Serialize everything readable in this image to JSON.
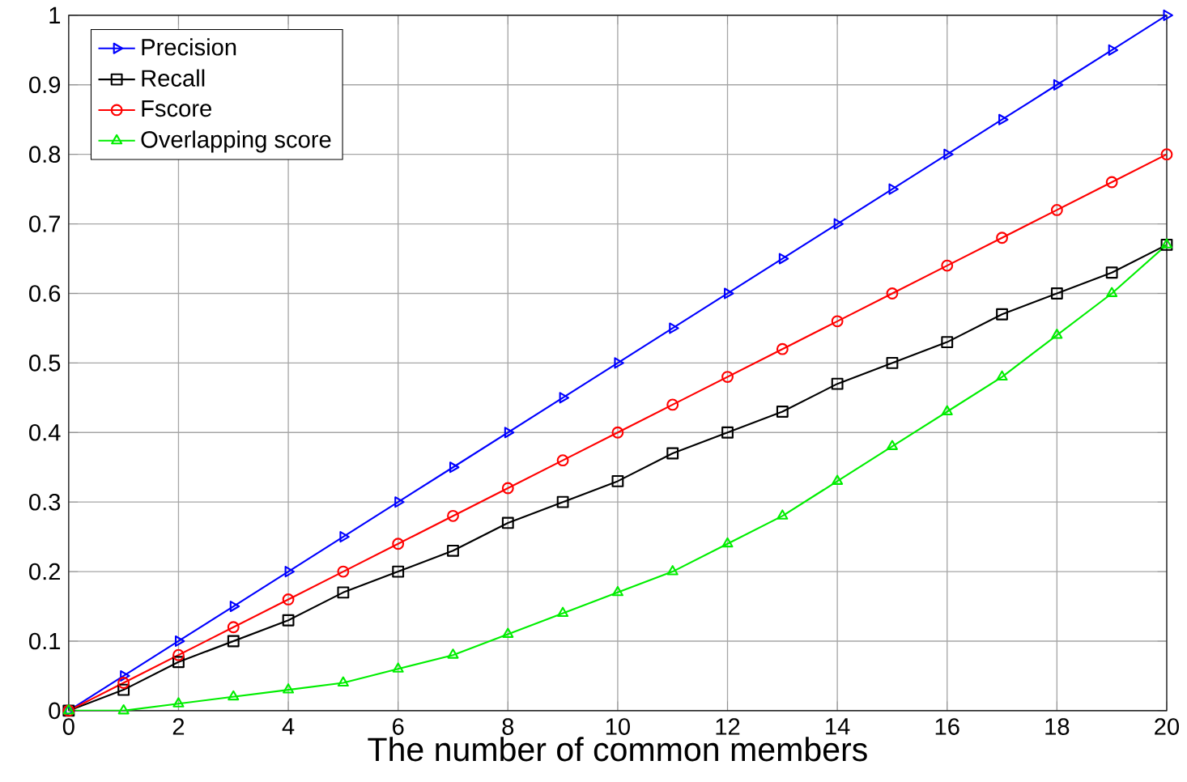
{
  "chart_data": {
    "type": "line",
    "xlabel": "The number of common members",
    "x": [
      0,
      1,
      2,
      3,
      4,
      5,
      6,
      7,
      8,
      9,
      10,
      11,
      12,
      13,
      14,
      15,
      16,
      17,
      18,
      19,
      20
    ],
    "series": [
      {
        "name": "Precision",
        "color": "#0000ff",
        "marker": "triangle-right",
        "values": [
          0,
          0.05,
          0.1,
          0.15,
          0.2,
          0.25,
          0.3,
          0.35,
          0.4,
          0.45,
          0.5,
          0.55,
          0.6,
          0.65,
          0.7,
          0.75,
          0.8,
          0.85,
          0.9,
          0.95,
          1
        ]
      },
      {
        "name": "Recall",
        "color": "#000000",
        "marker": "square",
        "values": [
          0,
          0.03,
          0.07,
          0.1,
          0.13,
          0.17,
          0.2,
          0.23,
          0.27,
          0.3,
          0.33,
          0.37,
          0.4,
          0.43,
          0.47,
          0.5,
          0.53,
          0.57,
          0.6,
          0.63,
          0.67
        ]
      },
      {
        "name": "Fscore",
        "color": "#ff0000",
        "marker": "circle",
        "values": [
          0,
          0.04,
          0.08,
          0.12,
          0.16,
          0.2,
          0.24,
          0.28,
          0.32,
          0.36,
          0.4,
          0.44,
          0.48,
          0.52,
          0.56,
          0.6,
          0.64,
          0.68,
          0.72,
          0.76,
          0.8
        ]
      },
      {
        "name": "Overlapping score",
        "color": "#00ee00",
        "marker": "triangle",
        "values": [
          0,
          0,
          0.01,
          0.02,
          0.03,
          0.04,
          0.06,
          0.08,
          0.11,
          0.14,
          0.17,
          0.2,
          0.24,
          0.28,
          0.33,
          0.38,
          0.43,
          0.48,
          0.54,
          0.6,
          0.67
        ]
      }
    ],
    "xlim": [
      0,
      20
    ],
    "xticks": [
      0,
      2,
      4,
      6,
      8,
      10,
      12,
      14,
      16,
      18,
      20
    ],
    "ylim": [
      0,
      1
    ],
    "yticks": [
      0,
      0.1,
      0.2,
      0.3,
      0.4,
      0.5,
      0.6,
      0.7,
      0.8,
      0.9,
      1
    ],
    "grid": true,
    "legend": "top left",
    "line_style": "solid"
  }
}
